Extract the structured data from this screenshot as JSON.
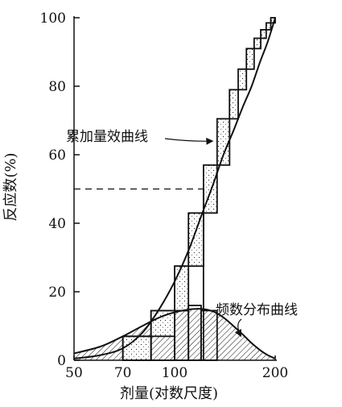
{
  "chart_data": {
    "type": "line",
    "title": "",
    "xlabel": "剂量(对数尺度)",
    "ylabel": "反应数(%)",
    "x_scale": "log",
    "xlim": [
      50,
      200
    ],
    "ylim": [
      0,
      100
    ],
    "x_ticks": [
      50,
      70,
      100,
      200
    ],
    "y_ticks": [
      0,
      20,
      40,
      60,
      80,
      100
    ],
    "grid": false,
    "series": [
      {
        "name": "累加量效曲线",
        "style": "solid",
        "points": [
          [
            50,
            0.5
          ],
          [
            60,
            1.5
          ],
          [
            70,
            3.5
          ],
          [
            80,
            8
          ],
          [
            90,
            15
          ],
          [
            100,
            23
          ],
          [
            110,
            32
          ],
          [
            120,
            42
          ],
          [
            130,
            51
          ],
          [
            140,
            60
          ],
          [
            150,
            67
          ],
          [
            160,
            74
          ],
          [
            170,
            80
          ],
          [
            180,
            87
          ],
          [
            190,
            93
          ],
          [
            200,
            100
          ]
        ]
      },
      {
        "name": "频数分布曲线",
        "style": "solid",
        "points": [
          [
            50,
            2
          ],
          [
            60,
            4
          ],
          [
            70,
            7
          ],
          [
            80,
            10
          ],
          [
            90,
            12.5
          ],
          [
            100,
            14
          ],
          [
            110,
            14.8
          ],
          [
            120,
            15
          ],
          [
            130,
            14.3
          ],
          [
            140,
            12.5
          ],
          [
            150,
            10
          ],
          [
            160,
            7.5
          ],
          [
            170,
            5
          ],
          [
            180,
            3
          ],
          [
            190,
            1.5
          ],
          [
            200,
            0.5
          ]
        ]
      }
    ],
    "cumulative_bars": [
      {
        "x0": 70,
        "x1": 85,
        "y0": 0,
        "y1": 7
      },
      {
        "x0": 85,
        "x1": 100,
        "y0": 7,
        "y1": 14.5
      },
      {
        "x0": 100,
        "x1": 110,
        "y0": 14.5,
        "y1": 27.5
      },
      {
        "x0": 110,
        "x1": 122,
        "y0": 27.5,
        "y1": 43
      },
      {
        "x0": 122,
        "x1": 134,
        "y0": 43,
        "y1": 57
      },
      {
        "x0": 134,
        "x1": 146,
        "y0": 57,
        "y1": 70.5
      },
      {
        "x0": 146,
        "x1": 155,
        "y0": 70.5,
        "y1": 79
      },
      {
        "x0": 155,
        "x1": 164,
        "y0": 79,
        "y1": 85
      },
      {
        "x0": 164,
        "x1": 173,
        "y0": 85,
        "y1": 91
      },
      {
        "x0": 173,
        "x1": 181,
        "y0": 91,
        "y1": 94
      },
      {
        "x0": 181,
        "x1": 188,
        "y0": 94,
        "y1": 96.5
      },
      {
        "x0": 188,
        "x1": 194,
        "y0": 96.5,
        "y1": 98.5
      },
      {
        "x0": 194,
        "x1": 200,
        "y0": 98.5,
        "y1": 100
      }
    ],
    "frequency_bars": [
      {
        "x0": 70,
        "x1": 85,
        "y": 7
      },
      {
        "x0": 85,
        "x1": 100,
        "y": 14.5
      },
      {
        "x0": 100,
        "x1": 110,
        "y": 14.5
      },
      {
        "x0": 110,
        "x1": 120,
        "y": 16
      },
      {
        "x0": 120,
        "x1": 134,
        "y": 14.5
      }
    ],
    "reference_line": {
      "y": 50,
      "x_end": 122,
      "style": "dashed"
    },
    "ed50_marker": {
      "x": 122,
      "y_top": 50
    },
    "annotations": [
      {
        "text": "累加量效曲线",
        "target_x": 130,
        "target_y": 64
      },
      {
        "text": "频数分布曲线",
        "target_x": 158,
        "target_y": 7
      }
    ]
  }
}
